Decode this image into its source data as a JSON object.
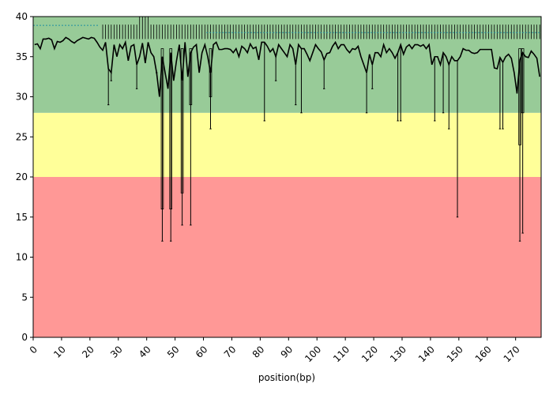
{
  "chart_data": {
    "type": "line",
    "title": "",
    "xlabel": "position(bp)",
    "ylabel": "",
    "xlim": [
      0,
      179
    ],
    "ylim": [
      0,
      40
    ],
    "grid": false,
    "legend": "none",
    "quality_bands": [
      {
        "from": 0,
        "to": 20,
        "color": "#ff9896"
      },
      {
        "from": 20,
        "to": 28,
        "color": "#ffff99"
      },
      {
        "from": 28,
        "to": 40,
        "color": "#98cb98"
      }
    ],
    "x_ticks": [
      0,
      10,
      20,
      30,
      40,
      50,
      60,
      70,
      80,
      90,
      100,
      110,
      120,
      130,
      140,
      150,
      160,
      170
    ],
    "x_tick_labels": [
      "0",
      "10",
      "20",
      "30",
      "40",
      "50",
      "60",
      "70",
      "80",
      "90",
      "100",
      "110",
      "120",
      "130",
      "140",
      "150",
      "160",
      "170"
    ],
    "y_ticks": [
      0,
      5,
      10,
      15,
      20,
      25,
      30,
      35,
      40
    ],
    "y_tick_labels": [
      "0",
      "5",
      "10",
      "15",
      "20",
      "25",
      "30",
      "35",
      "40"
    ],
    "mean_quality": [
      [
        0,
        36.5
      ],
      [
        1,
        36.6
      ],
      [
        2,
        36.0
      ],
      [
        3,
        37.2
      ],
      [
        4,
        37.2
      ],
      [
        5,
        37.3
      ],
      [
        6,
        37.1
      ],
      [
        7,
        36.0
      ],
      [
        8,
        36.9
      ],
      [
        9,
        36.8
      ],
      [
        10,
        37.0
      ],
      [
        11,
        37.4
      ],
      [
        12,
        37.2
      ],
      [
        13,
        36.9
      ],
      [
        14,
        36.7
      ],
      [
        15,
        37.0
      ],
      [
        16,
        37.2
      ],
      [
        17,
        37.4
      ],
      [
        18,
        37.3
      ],
      [
        19,
        37.2
      ],
      [
        20,
        37.4
      ],
      [
        21,
        37.3
      ],
      [
        22,
        36.8
      ],
      [
        23,
        36.2
      ],
      [
        24,
        35.8
      ],
      [
        25,
        36.8
      ],
      [
        26,
        33.5
      ],
      [
        27,
        33.0
      ],
      [
        28,
        36.5
      ],
      [
        29,
        35.0
      ],
      [
        30,
        36.5
      ],
      [
        31,
        36.0
      ],
      [
        32,
        36.8
      ],
      [
        33,
        34.5
      ],
      [
        34,
        36.3
      ],
      [
        35,
        36.5
      ],
      [
        36,
        34.0
      ],
      [
        37,
        35.0
      ],
      [
        38,
        36.7
      ],
      [
        39,
        34.2
      ],
      [
        40,
        36.8
      ],
      [
        41,
        35.5
      ],
      [
        42,
        35.0
      ],
      [
        43,
        33.0
      ],
      [
        44,
        30.0
      ],
      [
        45,
        35.0
      ],
      [
        46,
        33.0
      ],
      [
        47,
        31.0
      ],
      [
        48,
        35.5
      ],
      [
        49,
        32.0
      ],
      [
        50,
        34.5
      ],
      [
        51,
        36.5
      ],
      [
        52,
        32.0
      ],
      [
        53,
        36.8
      ],
      [
        54,
        32.5
      ],
      [
        55,
        35.5
      ],
      [
        56,
        36.2
      ],
      [
        57,
        36.5
      ],
      [
        58,
        33.0
      ],
      [
        59,
        35.5
      ],
      [
        60,
        36.5
      ],
      [
        61,
        35.0
      ],
      [
        62,
        33.0
      ],
      [
        63,
        36.5
      ],
      [
        64,
        36.8
      ],
      [
        65,
        35.9
      ],
      [
        66,
        35.9
      ],
      [
        67,
        36.0
      ],
      [
        68,
        36.0
      ],
      [
        69,
        35.9
      ],
      [
        70,
        35.5
      ],
      [
        71,
        36.0
      ],
      [
        72,
        35.0
      ],
      [
        73,
        36.3
      ],
      [
        74,
        36.0
      ],
      [
        75,
        35.5
      ],
      [
        76,
        36.6
      ],
      [
        77,
        36.0
      ],
      [
        78,
        36.2
      ],
      [
        79,
        34.6
      ],
      [
        80,
        36.8
      ],
      [
        81,
        36.8
      ],
      [
        82,
        36.3
      ],
      [
        83,
        35.6
      ],
      [
        84,
        36.0
      ],
      [
        85,
        35.0
      ],
      [
        86,
        36.5
      ],
      [
        87,
        36.0
      ],
      [
        88,
        35.5
      ],
      [
        89,
        35.0
      ],
      [
        90,
        36.5
      ],
      [
        91,
        36.0
      ],
      [
        92,
        34.0
      ],
      [
        93,
        36.5
      ],
      [
        94,
        36.0
      ],
      [
        95,
        36.0
      ],
      [
        96,
        35.3
      ],
      [
        97,
        34.5
      ],
      [
        98,
        35.5
      ],
      [
        99,
        36.5
      ],
      [
        100,
        36.0
      ],
      [
        101,
        35.6
      ],
      [
        102,
        34.6
      ],
      [
        103,
        35.4
      ],
      [
        104,
        35.5
      ],
      [
        105,
        36.3
      ],
      [
        106,
        36.8
      ],
      [
        107,
        36.0
      ],
      [
        108,
        36.5
      ],
      [
        109,
        36.5
      ],
      [
        110,
        35.9
      ],
      [
        111,
        35.5
      ],
      [
        112,
        36.0
      ],
      [
        113,
        35.9
      ],
      [
        114,
        36.3
      ],
      [
        115,
        35.0
      ],
      [
        116,
        34.0
      ],
      [
        117,
        33.0
      ],
      [
        118,
        35.3
      ],
      [
        119,
        34.0
      ],
      [
        120,
        35.5
      ],
      [
        121,
        35.5
      ],
      [
        122,
        35.0
      ],
      [
        123,
        36.5
      ],
      [
        124,
        35.5
      ],
      [
        125,
        36.0
      ],
      [
        126,
        35.5
      ],
      [
        127,
        34.8
      ],
      [
        128,
        35.5
      ],
      [
        129,
        36.5
      ],
      [
        130,
        35.3
      ],
      [
        131,
        36.2
      ],
      [
        132,
        36.5
      ],
      [
        133,
        36.0
      ],
      [
        134,
        36.5
      ],
      [
        135,
        36.5
      ],
      [
        136,
        36.3
      ],
      [
        137,
        36.5
      ],
      [
        138,
        36.0
      ],
      [
        139,
        36.5
      ],
      [
        140,
        34.0
      ],
      [
        141,
        35.0
      ],
      [
        142,
        35.0
      ],
      [
        143,
        34.0
      ],
      [
        144,
        35.5
      ],
      [
        145,
        35.0
      ],
      [
        146,
        34.0
      ],
      [
        147,
        35.0
      ],
      [
        148,
        34.5
      ],
      [
        149,
        34.5
      ],
      [
        150,
        35.0
      ],
      [
        151,
        36.0
      ],
      [
        152,
        35.8
      ],
      [
        153,
        35.8
      ],
      [
        154,
        35.5
      ],
      [
        155,
        35.4
      ],
      [
        156,
        35.5
      ],
      [
        157,
        35.9
      ],
      [
        158,
        35.9
      ],
      [
        159,
        35.9
      ],
      [
        160,
        35.9
      ],
      [
        161,
        35.9
      ],
      [
        162,
        33.6
      ],
      [
        163,
        33.5
      ],
      [
        164,
        34.9
      ],
      [
        165,
        34.3
      ],
      [
        166,
        35.0
      ],
      [
        167,
        35.3
      ],
      [
        168,
        34.8
      ],
      [
        169,
        33.0
      ],
      [
        170,
        30.4
      ],
      [
        171,
        34.6
      ],
      [
        172,
        35.5
      ],
      [
        173,
        35.0
      ],
      [
        174,
        34.9
      ],
      [
        175,
        35.7
      ],
      [
        176,
        35.3
      ],
      [
        177,
        34.8
      ],
      [
        178,
        32.5
      ]
    ],
    "whiskers": [
      [
        26,
        29
      ],
      [
        27,
        32
      ],
      [
        36,
        31
      ],
      [
        43,
        33
      ],
      [
        45,
        12
      ],
      [
        48,
        12
      ],
      [
        52,
        14
      ],
      [
        55,
        14
      ],
      [
        62,
        26
      ],
      [
        81,
        27
      ],
      [
        85,
        32
      ],
      [
        92,
        29
      ],
      [
        94,
        28
      ],
      [
        102,
        31
      ],
      [
        117,
        28
      ],
      [
        119,
        31
      ],
      [
        128,
        27
      ],
      [
        129,
        27
      ],
      [
        141,
        27
      ],
      [
        144,
        28
      ],
      [
        146,
        26
      ],
      [
        149,
        15
      ],
      [
        164,
        26
      ],
      [
        165,
        26
      ],
      [
        171,
        12
      ],
      [
        172,
        13
      ]
    ],
    "iqr_low": [
      [
        45,
        16
      ],
      [
        48,
        16
      ],
      [
        52,
        18
      ],
      [
        55,
        29
      ],
      [
        62,
        30
      ],
      [
        171,
        24
      ],
      [
        172,
        28
      ]
    ]
  }
}
